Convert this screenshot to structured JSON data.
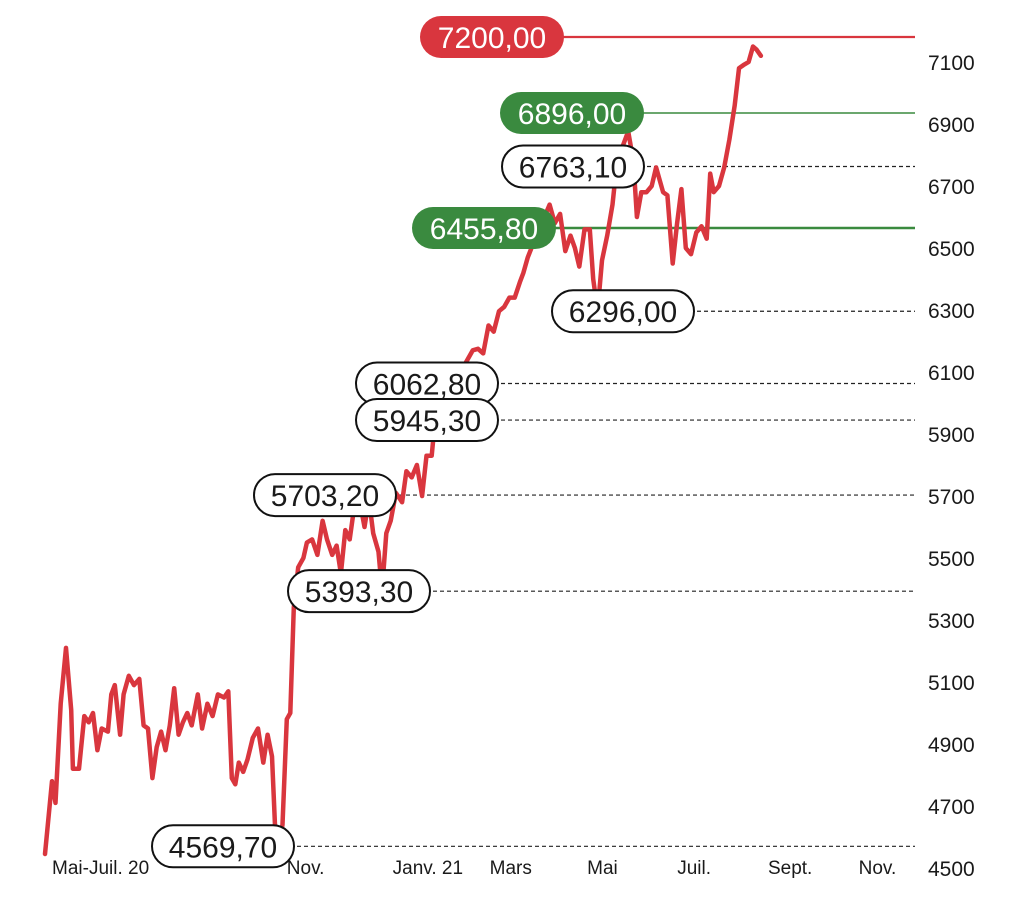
{
  "chart_data": {
    "type": "line",
    "title": "",
    "xlabel": "",
    "ylabel": "",
    "ylim": [
      4500,
      7200
    ],
    "y_ticks": [
      4500,
      4700,
      4900,
      5100,
      5300,
      5500,
      5700,
      5900,
      6100,
      6300,
      6500,
      6700,
      6900,
      7100
    ],
    "y_tick_labels": [
      "4500",
      "4700",
      "4900",
      "5100",
      "5300",
      "5500",
      "5700",
      "5900",
      "6100",
      "6300",
      "6500",
      "6700",
      "6900",
      "7100"
    ],
    "x_tick_labels": [
      {
        "label": "Mai-Juil. 20",
        "t": 0.06
      },
      {
        "label": "Nov.",
        "t": 0.31
      },
      {
        "label": "Janv. 21",
        "t": 0.45
      },
      {
        "label": "Mars",
        "t": 0.545
      },
      {
        "label": "Mai",
        "t": 0.65
      },
      {
        "label": "Juil.",
        "t": 0.755
      },
      {
        "label": "Sept.",
        "t": 0.865
      },
      {
        "label": "Nov.",
        "t": 0.965
      }
    ],
    "series": [
      {
        "color": "#d9363e",
        "points": [
          [
            0.0,
            4545
          ],
          [
            0.008,
            4780
          ],
          [
            0.012,
            4710
          ],
          [
            0.018,
            5030
          ],
          [
            0.024,
            5210
          ],
          [
            0.03,
            5010
          ],
          [
            0.032,
            4820
          ],
          [
            0.039,
            4820
          ],
          [
            0.045,
            4990
          ],
          [
            0.05,
            4970
          ],
          [
            0.055,
            5000
          ],
          [
            0.06,
            4880
          ],
          [
            0.065,
            4950
          ],
          [
            0.072,
            4940
          ],
          [
            0.076,
            5060
          ],
          [
            0.08,
            5090
          ],
          [
            0.086,
            4930
          ],
          [
            0.09,
            5060
          ],
          [
            0.096,
            5120
          ],
          [
            0.102,
            5090
          ],
          [
            0.108,
            5110
          ],
          [
            0.113,
            4960
          ],
          [
            0.118,
            4950
          ],
          [
            0.123,
            4790
          ],
          [
            0.128,
            4890
          ],
          [
            0.133,
            4940
          ],
          [
            0.138,
            4880
          ],
          [
            0.143,
            4960
          ],
          [
            0.148,
            5080
          ],
          [
            0.153,
            4930
          ],
          [
            0.158,
            4970
          ],
          [
            0.163,
            5000
          ],
          [
            0.168,
            4960
          ],
          [
            0.175,
            5060
          ],
          [
            0.18,
            4950
          ],
          [
            0.186,
            5030
          ],
          [
            0.192,
            4990
          ],
          [
            0.198,
            5060
          ],
          [
            0.205,
            5050
          ],
          [
            0.21,
            5070
          ],
          [
            0.214,
            4790
          ],
          [
            0.218,
            4770
          ],
          [
            0.222,
            4840
          ],
          [
            0.227,
            4810
          ],
          [
            0.232,
            4850
          ],
          [
            0.238,
            4920
          ],
          [
            0.244,
            4950
          ],
          [
            0.25,
            4840
          ],
          [
            0.255,
            4930
          ],
          [
            0.26,
            4860
          ],
          [
            0.264,
            4600
          ],
          [
            0.268,
            4570
          ],
          [
            0.272,
            4640
          ],
          [
            0.277,
            4980
          ],
          [
            0.281,
            5000
          ],
          [
            0.285,
            5340
          ],
          [
            0.29,
            5470
          ],
          [
            0.296,
            5500
          ],
          [
            0.3,
            5550
          ],
          [
            0.306,
            5560
          ],
          [
            0.312,
            5510
          ],
          [
            0.318,
            5620
          ],
          [
            0.323,
            5560
          ],
          [
            0.329,
            5510
          ],
          [
            0.334,
            5540
          ],
          [
            0.339,
            5450
          ],
          [
            0.344,
            5590
          ],
          [
            0.349,
            5560
          ],
          [
            0.355,
            5680
          ],
          [
            0.36,
            5690
          ],
          [
            0.366,
            5600
          ],
          [
            0.371,
            5690
          ],
          [
            0.376,
            5580
          ],
          [
            0.382,
            5520
          ],
          [
            0.386,
            5393
          ],
          [
            0.391,
            5580
          ],
          [
            0.396,
            5620
          ],
          [
            0.402,
            5710
          ],
          [
            0.409,
            5680
          ],
          [
            0.414,
            5780
          ],
          [
            0.42,
            5760
          ],
          [
            0.426,
            5800
          ],
          [
            0.432,
            5700
          ],
          [
            0.437,
            5830
          ],
          [
            0.443,
            5830
          ],
          [
            0.45,
            6040
          ],
          [
            0.456,
            6055
          ],
          [
            0.462,
            6063
          ],
          [
            0.466,
            5945
          ],
          [
            0.472,
            6010
          ],
          [
            0.478,
            6110
          ],
          [
            0.484,
            6140
          ],
          [
            0.49,
            6170
          ],
          [
            0.496,
            6175
          ],
          [
            0.502,
            6160
          ],
          [
            0.508,
            6250
          ],
          [
            0.514,
            6230
          ],
          [
            0.52,
            6296
          ],
          [
            0.526,
            6310
          ],
          [
            0.532,
            6340
          ],
          [
            0.538,
            6340
          ],
          [
            0.544,
            6390
          ],
          [
            0.548,
            6420
          ],
          [
            0.553,
            6470
          ],
          [
            0.56,
            6520
          ],
          [
            0.566,
            6560
          ],
          [
            0.572,
            6600
          ],
          [
            0.578,
            6640
          ],
          [
            0.584,
            6580
          ],
          [
            0.59,
            6610
          ],
          [
            0.596,
            6490
          ],
          [
            0.602,
            6540
          ],
          [
            0.607,
            6500
          ],
          [
            0.612,
            6440
          ],
          [
            0.618,
            6560
          ],
          [
            0.624,
            6560
          ],
          [
            0.628,
            6400
          ],
          [
            0.633,
            6296
          ],
          [
            0.638,
            6460
          ],
          [
            0.644,
            6540
          ],
          [
            0.65,
            6640
          ],
          [
            0.656,
            6800
          ],
          [
            0.662,
            6830
          ],
          [
            0.668,
            6876
          ],
          [
            0.674,
            6780
          ],
          [
            0.678,
            6600
          ],
          [
            0.683,
            6680
          ],
          [
            0.689,
            6680
          ],
          [
            0.695,
            6700
          ],
          [
            0.7,
            6760
          ],
          [
            0.704,
            6720
          ],
          [
            0.708,
            6680
          ],
          [
            0.713,
            6670
          ],
          [
            0.719,
            6450
          ],
          [
            0.724,
            6580
          ],
          [
            0.729,
            6690
          ],
          [
            0.734,
            6500
          ],
          [
            0.74,
            6480
          ],
          [
            0.746,
            6550
          ],
          [
            0.752,
            6570
          ],
          [
            0.758,
            6530
          ],
          [
            0.762,
            6740
          ],
          [
            0.766,
            6680
          ],
          [
            0.772,
            6700
          ],
          [
            0.778,
            6760
          ],
          [
            0.784,
            6850
          ],
          [
            0.79,
            6960
          ],
          [
            0.795,
            7080
          ],
          [
            0.8,
            7090
          ],
          [
            0.806,
            7100
          ],
          [
            0.811,
            7150
          ],
          [
            0.815,
            7140
          ],
          [
            0.82,
            7120
          ]
        ]
      }
    ],
    "annotations": [
      {
        "label": "7200,00",
        "value": 7200,
        "style": "red",
        "x_start": 0.02,
        "x_end": 1.0,
        "box_x": 0.0
      },
      {
        "label": "6896,00",
        "value": 6896,
        "style": "green",
        "x_start": 0.02,
        "x_end": 1.0,
        "box_x": 0.0
      },
      {
        "label": "6763,10",
        "value": 6763,
        "style": "outline",
        "x_start": 0.66,
        "x_end": 1.0,
        "box_x": 0.0
      },
      {
        "label": "6455,80",
        "value": 6456,
        "style": "green",
        "x_start": 0.02,
        "x_end": 1.0,
        "box_x": 0.0
      },
      {
        "label": "6296,00",
        "value": 6296,
        "style": "outline",
        "x_start": 0.63,
        "x_end": 1.0,
        "box_x": 0.0
      },
      {
        "label": "6062,80",
        "value": 6063,
        "style": "outline",
        "x_start": 0.46,
        "x_end": 1.0,
        "box_x": 0.0
      },
      {
        "label": "5945,30",
        "value": 5945,
        "style": "outline",
        "x_start": 0.46,
        "x_end": 1.0,
        "box_x": 0.0
      },
      {
        "label": "5703,20",
        "value": 5703,
        "style": "outline",
        "x_start": 0.36,
        "x_end": 1.0,
        "box_x": 0.0
      },
      {
        "label": "5393,30",
        "value": 5393,
        "style": "outline",
        "x_start": 0.38,
        "x_end": 1.0,
        "box_x": 0.0
      },
      {
        "label": "4569,70",
        "value": 4570,
        "style": "outline",
        "x_start": 0.27,
        "x_end": 1.0,
        "box_x": 0.0
      }
    ],
    "colors": {
      "line": "#d9363e",
      "red": "#d9363e",
      "green": "#3a8a3f",
      "text": "#1a1a1a"
    }
  }
}
